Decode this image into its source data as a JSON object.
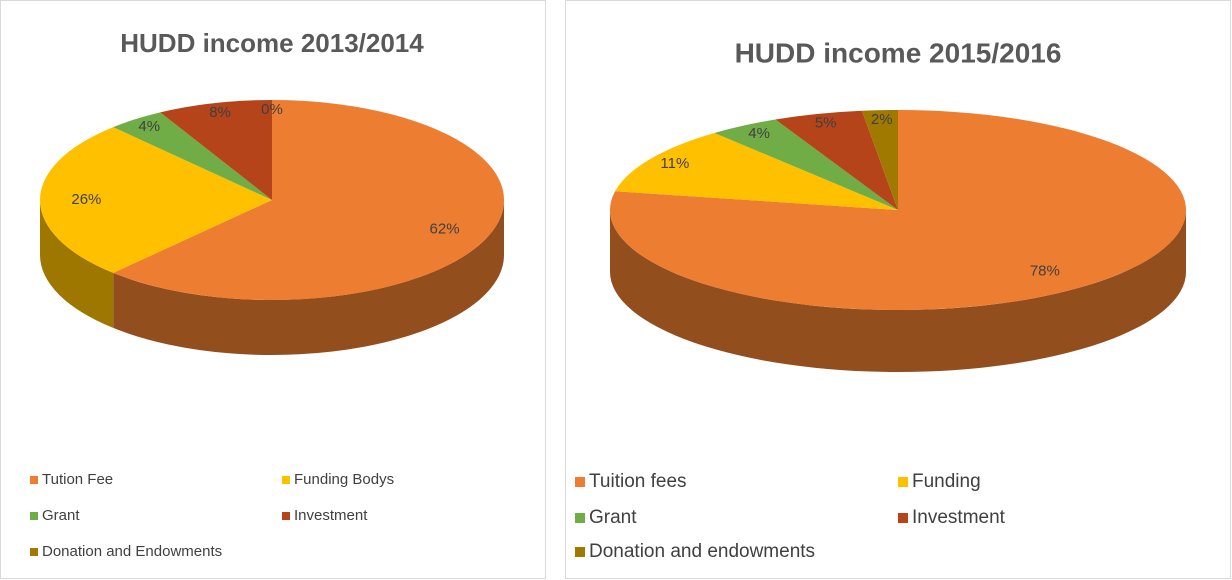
{
  "chart_data": [
    {
      "type": "pie3d",
      "title": "HUDD income 2013/2014",
      "categories": [
        "Tution Fee",
        "Funding Bodys",
        "Grant",
        "Investment",
        "Donation and Endowments"
      ],
      "values": [
        62,
        26,
        4,
        8,
        0
      ],
      "value_labels": [
        "62%",
        "26%",
        "4%",
        "8%",
        "0%"
      ],
      "colors": [
        "#ed7d31",
        "#ffc000",
        "#70ad47",
        "#b5441a",
        "#a07a00"
      ],
      "legend": "bottom"
    },
    {
      "type": "pie3d",
      "title": "HUDD income 2015/2016",
      "categories": [
        "Tuition fees",
        "Funding",
        "Grant",
        "Investment",
        "Donation and endowments"
      ],
      "values": [
        78,
        11,
        4,
        5,
        2
      ],
      "value_labels": [
        "78%",
        "11%",
        "4%",
        "5%",
        "2%"
      ],
      "colors": [
        "#ed7d31",
        "#ffc000",
        "#70ad47",
        "#b5441a",
        "#a07a00"
      ],
      "legend": "bottom"
    }
  ]
}
